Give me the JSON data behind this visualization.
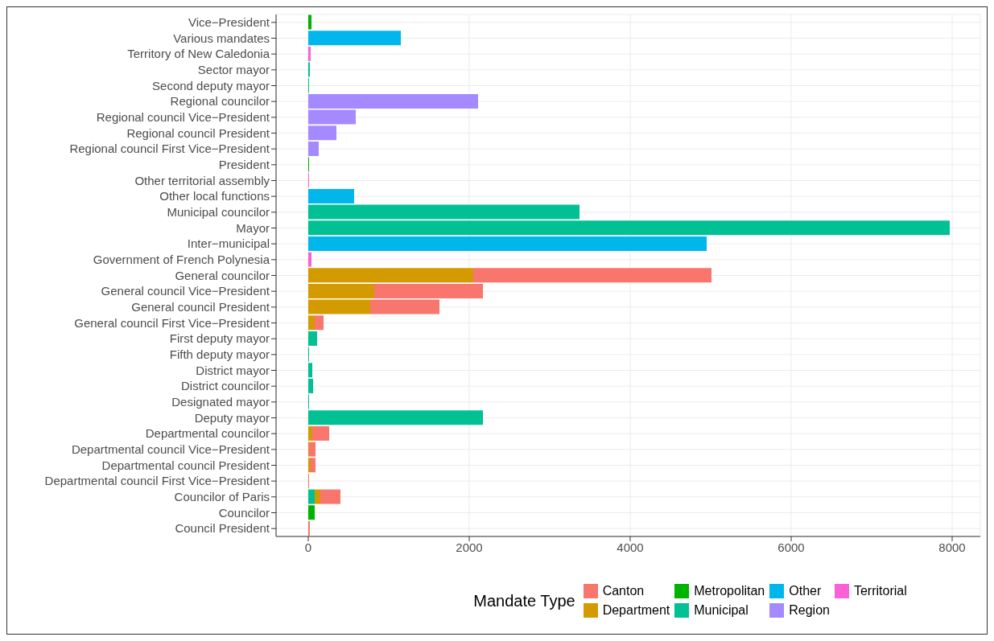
{
  "chart_data": {
    "type": "bar",
    "orientation": "horizontal",
    "stacked": true,
    "legend_title": "Mandate Type",
    "legend": "bottom",
    "grid": true,
    "categories": [
      "Vice−President",
      "Various mandates",
      "Territory of New Caledonia",
      "Sector mayor",
      "Second deputy mayor",
      "Regional councilor",
      "Regional council Vice−President",
      "Regional council President",
      "Regional council First Vice−President",
      "President",
      "Other territorial assembly",
      "Other local functions",
      "Municipal councilor",
      "Mayor",
      "Inter−municipal",
      "Government of French Polynesia",
      "General councilor",
      "General council Vice−President",
      "General council President",
      "General council First Vice−President",
      "First deputy mayor",
      "Fifth deputy mayor",
      "District mayor",
      "District councilor",
      "Designated mayor",
      "Deputy mayor",
      "Departmental councilor",
      "Departmental council Vice−President",
      "Departmental council President",
      "Departmental council First Vice−President",
      "Councilor of Paris",
      "Councilor",
      "Council President"
    ],
    "xlim": [
      -400,
      8350
    ],
    "xticks": [
      0,
      2000,
      4000,
      6000,
      8000
    ],
    "series": [
      {
        "name": "Territorial",
        "color": "#fb61d7",
        "values": [
          null,
          null,
          30,
          null,
          null,
          null,
          null,
          null,
          null,
          null,
          10,
          null,
          null,
          null,
          null,
          40,
          null,
          null,
          null,
          null,
          null,
          null,
          null,
          null,
          null,
          null,
          null,
          null,
          null,
          null,
          null,
          null,
          null
        ]
      },
      {
        "name": "Region",
        "color": "#a58aff",
        "values": [
          null,
          null,
          null,
          null,
          null,
          2110,
          590,
          350,
          130,
          null,
          null,
          null,
          null,
          null,
          null,
          null,
          null,
          null,
          null,
          null,
          null,
          null,
          null,
          null,
          null,
          null,
          null,
          null,
          null,
          null,
          null,
          null,
          null
        ]
      },
      {
        "name": "Other",
        "color": "#00b6eb",
        "values": [
          null,
          1150,
          null,
          null,
          null,
          null,
          null,
          null,
          null,
          null,
          null,
          570,
          null,
          null,
          4950,
          null,
          null,
          null,
          null,
          null,
          null,
          null,
          null,
          null,
          null,
          null,
          null,
          null,
          null,
          null,
          null,
          null,
          null
        ]
      },
      {
        "name": "Municipal",
        "color": "#00c094",
        "values": [
          null,
          null,
          null,
          20,
          10,
          null,
          null,
          null,
          null,
          null,
          null,
          null,
          3370,
          7970,
          null,
          null,
          null,
          null,
          null,
          null,
          110,
          10,
          50,
          60,
          10,
          2170,
          null,
          null,
          null,
          null,
          80,
          null,
          null
        ]
      },
      {
        "name": "Metropolitan",
        "color": "#00b300",
        "values": [
          40,
          null,
          null,
          null,
          null,
          null,
          null,
          null,
          null,
          10,
          null,
          null,
          null,
          null,
          null,
          null,
          null,
          null,
          null,
          null,
          null,
          null,
          null,
          null,
          null,
          null,
          null,
          null,
          null,
          null,
          null,
          80,
          null
        ]
      },
      {
        "name": "Department",
        "color": "#d39b00",
        "values": [
          null,
          null,
          null,
          null,
          null,
          null,
          null,
          null,
          null,
          null,
          null,
          null,
          null,
          null,
          null,
          null,
          2050,
          820,
          770,
          80,
          null,
          null,
          null,
          null,
          null,
          null,
          50,
          10,
          30,
          null,
          70,
          null,
          null
        ]
      },
      {
        "name": "Canton",
        "color": "#f8766d",
        "values": [
          null,
          null,
          null,
          null,
          null,
          null,
          null,
          null,
          null,
          null,
          null,
          null,
          null,
          null,
          null,
          null,
          2960,
          1350,
          860,
          110,
          null,
          null,
          null,
          null,
          null,
          null,
          210,
          80,
          60,
          10,
          250,
          null,
          20
        ]
      }
    ]
  }
}
